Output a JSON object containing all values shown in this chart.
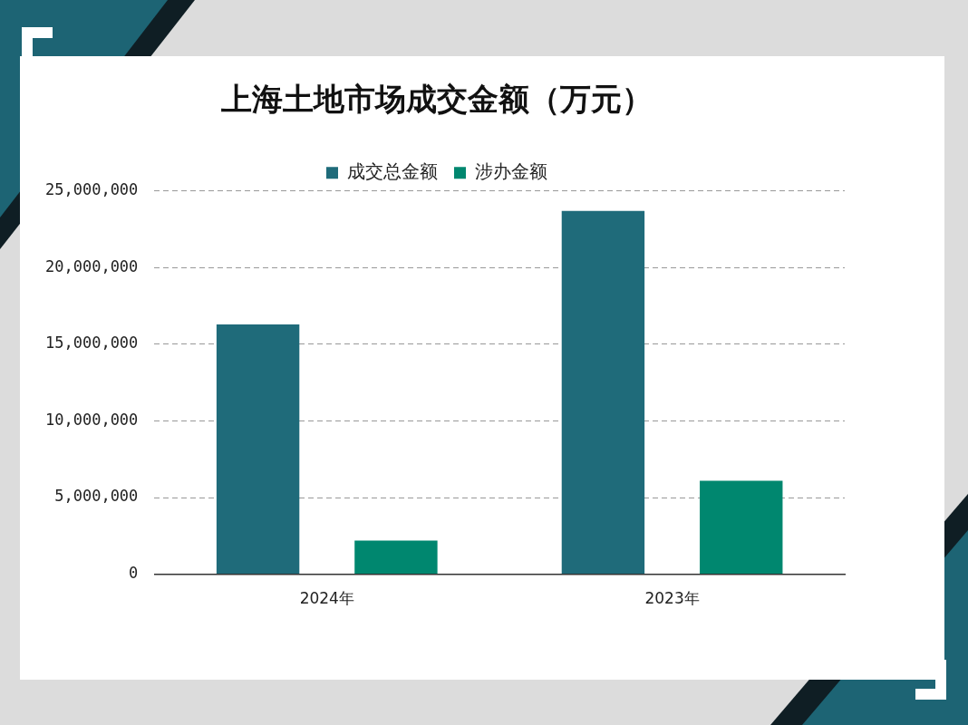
{
  "chart_data": {
    "type": "bar",
    "title": "上海土地市场成交金额（万元）",
    "categories": [
      "2024年",
      "2023年"
    ],
    "series": [
      {
        "name": "成交总金额",
        "color": "#1f6b7a",
        "values": [
          16300000,
          23700000
        ]
      },
      {
        "name": "涉办金额",
        "color": "#00876f",
        "values": [
          2200000,
          6100000
        ]
      }
    ],
    "ylim": [
      0,
      25000000
    ],
    "yticks": [
      {
        "value": 0,
        "label": "0"
      },
      {
        "value": 5000000,
        "label": "5,000,000"
      },
      {
        "value": 10000000,
        "label": "10,000,000"
      },
      {
        "value": 15000000,
        "label": "15,000,000"
      },
      {
        "value": 20000000,
        "label": "20,000,000"
      },
      {
        "value": 25000000,
        "label": "25,000,000"
      }
    ],
    "grid": "y",
    "legend": "top"
  }
}
